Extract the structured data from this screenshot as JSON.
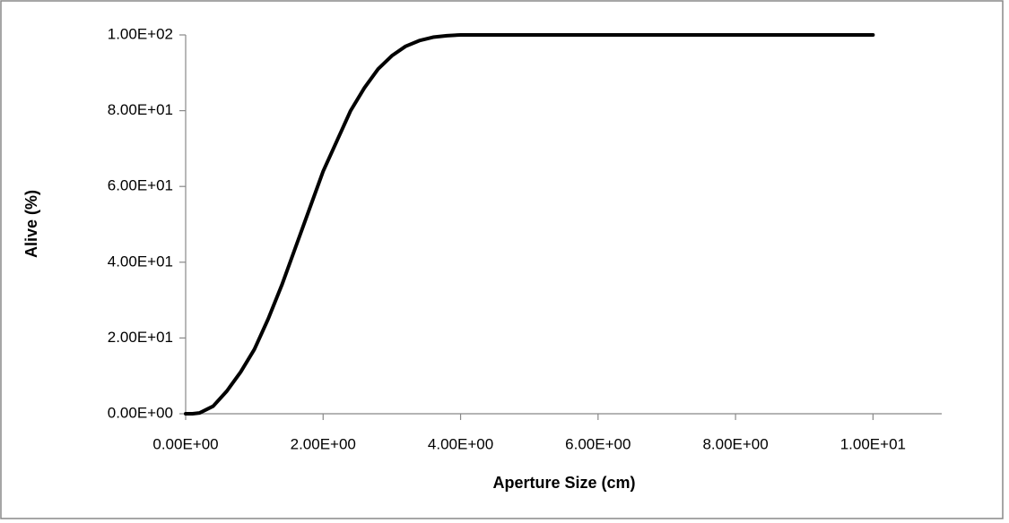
{
  "chart_data": {
    "type": "line",
    "x_label": "Aperture Size (cm)",
    "y_label": "Alive (%)",
    "x": [
      0,
      0.1,
      0.2,
      0.4,
      0.6,
      0.8,
      1.0,
      1.2,
      1.4,
      1.6,
      1.8,
      2.0,
      2.2,
      2.4,
      2.6,
      2.8,
      3.0,
      3.2,
      3.4,
      3.6,
      3.8,
      4.0,
      5,
      6,
      7,
      8,
      9,
      10
    ],
    "series": [
      {
        "name": "Alive",
        "color": "#000000",
        "values": [
          0,
          0,
          0.2,
          2,
          6,
          11,
          17,
          25,
          34,
          44,
          54,
          64,
          72,
          80,
          86,
          91,
          94.5,
          97,
          98.5,
          99.4,
          99.8,
          100,
          100,
          100,
          100,
          100,
          100,
          100
        ]
      }
    ],
    "xlim": [
      0,
      11
    ],
    "xticks": [
      {
        "value": 0,
        "label": "0.00E+00"
      },
      {
        "value": 2,
        "label": "2.00E+00"
      },
      {
        "value": 4,
        "label": "4.00E+00"
      },
      {
        "value": 6,
        "label": "6.00E+00"
      },
      {
        "value": 8,
        "label": "8.00E+00"
      },
      {
        "value": 10,
        "label": "1.00E+01"
      }
    ],
    "ylim": [
      0,
      100
    ],
    "yticks": [
      {
        "value": 0,
        "label": "0.00E+00"
      },
      {
        "value": 20,
        "label": "2.00E+01"
      },
      {
        "value": 40,
        "label": "4.00E+01"
      },
      {
        "value": 60,
        "label": "6.00E+01"
      },
      {
        "value": 80,
        "label": "8.00E+01"
      },
      {
        "value": 100,
        "label": "1.00E+02"
      }
    ],
    "grid": false
  }
}
